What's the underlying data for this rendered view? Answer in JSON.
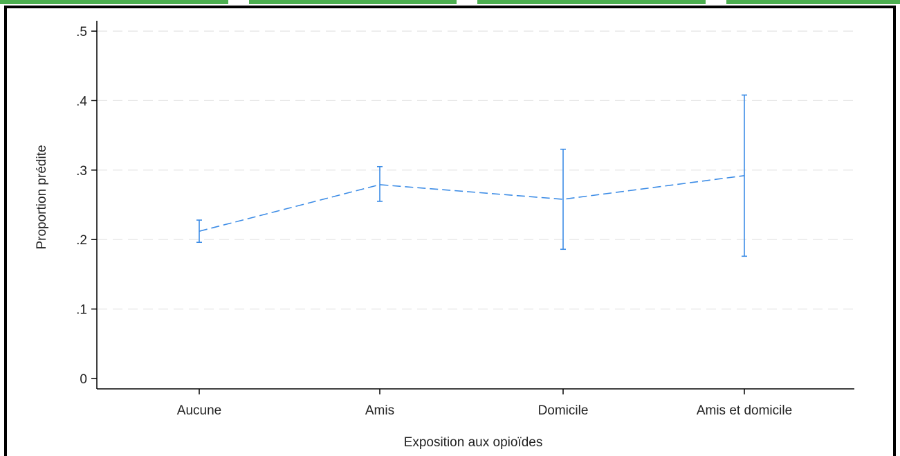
{
  "colors": {
    "series": "#3c8ce6",
    "grid": "#e4e4e4",
    "axis": "#000000",
    "top_band": "#4caf50"
  },
  "chart_data": {
    "type": "line",
    "title": "",
    "xlabel": "Exposition aux opioïdes",
    "ylabel": "Proportion prédite",
    "categories": [
      "Aucune",
      "Amis",
      "Domicile",
      "Amis et domicile"
    ],
    "yticks": [
      0,
      0.1,
      0.2,
      0.3,
      0.4,
      0.5
    ],
    "ytick_labels": [
      "0",
      ".1",
      ".2",
      ".3",
      ".4",
      ".5"
    ],
    "ylim": [
      0,
      0.51
    ],
    "grid": true,
    "line_style": "dashed",
    "series": [
      {
        "values": [
          0.212,
          0.279,
          0.258,
          0.292
        ],
        "ci_lower": [
          0.196,
          0.255,
          0.186,
          0.176
        ],
        "ci_upper": [
          0.228,
          0.305,
          0.33,
          0.408
        ]
      }
    ]
  }
}
